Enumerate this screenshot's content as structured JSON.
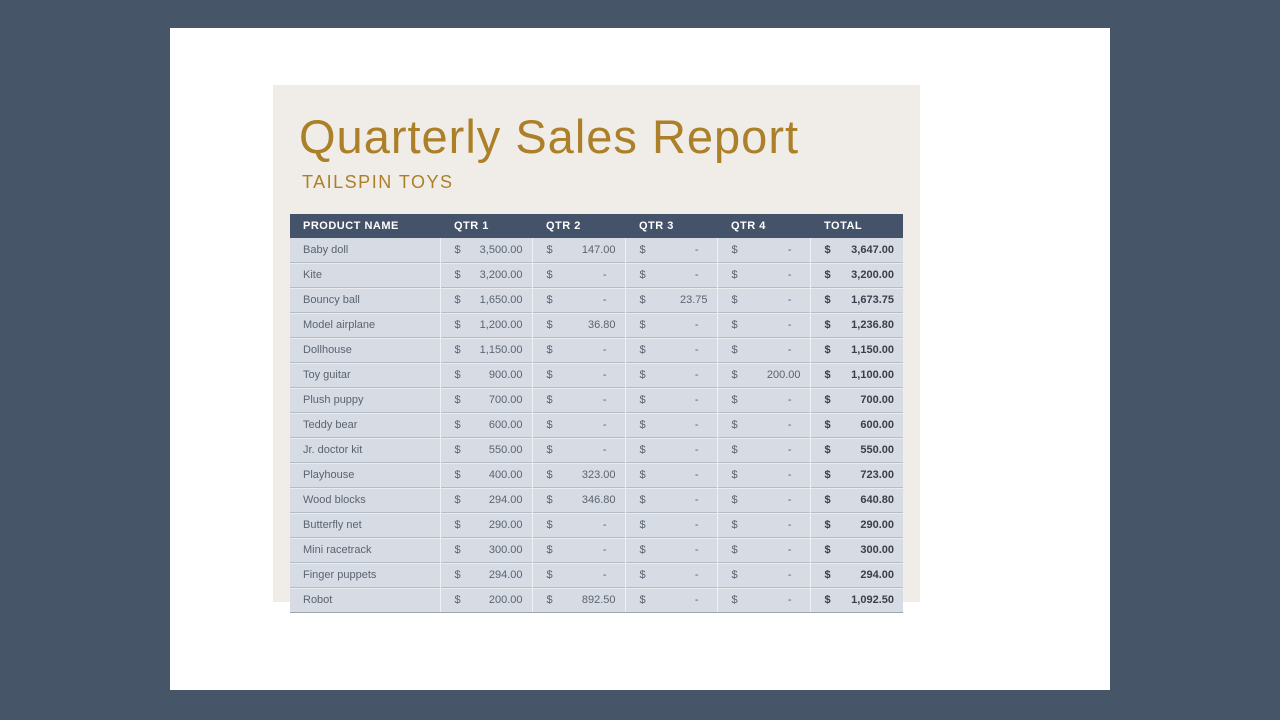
{
  "report": {
    "title": "Quarterly Sales Report",
    "subtitle": "TAILSPIN TOYS"
  },
  "table": {
    "currency_symbol": "$",
    "empty_value": "-",
    "columns": [
      "PRODUCT NAME",
      "QTR 1",
      "QTR 2",
      "QTR 3",
      "QTR 4",
      "TOTAL"
    ],
    "rows": [
      {
        "product": "Baby doll",
        "qtr1": "3,500.00",
        "qtr2": "147.00",
        "qtr3": "-",
        "qtr4": "-",
        "total": "3,647.00"
      },
      {
        "product": "Kite",
        "qtr1": "3,200.00",
        "qtr2": "-",
        "qtr3": "-",
        "qtr4": "-",
        "total": "3,200.00"
      },
      {
        "product": "Bouncy ball",
        "qtr1": "1,650.00",
        "qtr2": "-",
        "qtr3": "23.75",
        "qtr4": "-",
        "total": "1,673.75"
      },
      {
        "product": "Model airplane",
        "qtr1": "1,200.00",
        "qtr2": "36.80",
        "qtr3": "-",
        "qtr4": "-",
        "total": "1,236.80"
      },
      {
        "product": "Dollhouse",
        "qtr1": "1,150.00",
        "qtr2": "-",
        "qtr3": "-",
        "qtr4": "-",
        "total": "1,150.00"
      },
      {
        "product": "Toy guitar",
        "qtr1": "900.00",
        "qtr2": "-",
        "qtr3": "-",
        "qtr4": "200.00",
        "total": "1,100.00"
      },
      {
        "product": "Plush puppy",
        "qtr1": "700.00",
        "qtr2": "-",
        "qtr3": "-",
        "qtr4": "-",
        "total": "700.00"
      },
      {
        "product": "Teddy bear",
        "qtr1": "600.00",
        "qtr2": "-",
        "qtr3": "-",
        "qtr4": "-",
        "total": "600.00"
      },
      {
        "product": "Jr. doctor kit",
        "qtr1": "550.00",
        "qtr2": "-",
        "qtr3": "-",
        "qtr4": "-",
        "total": "550.00"
      },
      {
        "product": "Playhouse",
        "qtr1": "400.00",
        "qtr2": "323.00",
        "qtr3": "-",
        "qtr4": "-",
        "total": "723.00"
      },
      {
        "product": "Wood blocks",
        "qtr1": "294.00",
        "qtr2": "346.80",
        "qtr3": "-",
        "qtr4": "-",
        "total": "640.80"
      },
      {
        "product": "Butterfly net",
        "qtr1": "290.00",
        "qtr2": "-",
        "qtr3": "-",
        "qtr4": "-",
        "total": "290.00"
      },
      {
        "product": "Mini racetrack",
        "qtr1": "300.00",
        "qtr2": "-",
        "qtr3": "-",
        "qtr4": "-",
        "total": "300.00"
      },
      {
        "product": "Finger puppets",
        "qtr1": "294.00",
        "qtr2": "-",
        "qtr3": "-",
        "qtr4": "-",
        "total": "294.00"
      },
      {
        "product": "Robot",
        "qtr1": "200.00",
        "qtr2": "892.50",
        "qtr3": "-",
        "qtr4": "-",
        "total": "1,092.50"
      }
    ]
  },
  "colors": {
    "background": "#475569",
    "page": "#FFFFFF",
    "panel": "#F0EDE8",
    "accent_gold": "#AB8028",
    "table_header_bg": "#44536A",
    "table_header_text": "#FFFFFF",
    "row_bg": "#D6DBE4",
    "row_text": "#5A6470",
    "total_text": "#3A3F48"
  }
}
